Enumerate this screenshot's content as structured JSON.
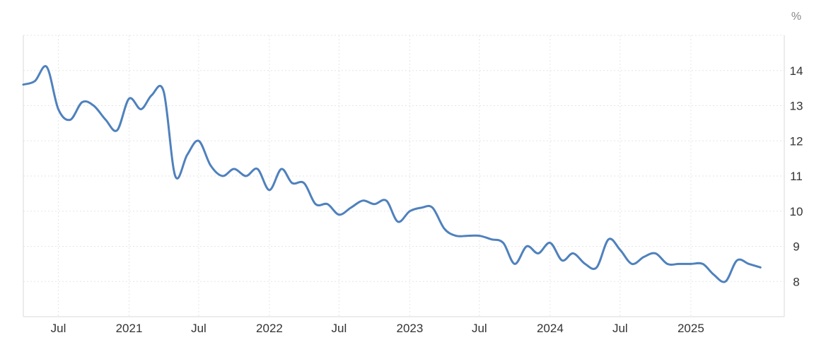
{
  "chart_data": {
    "type": "line",
    "unit": "%",
    "yticks": [
      8,
      9,
      10,
      11,
      12,
      13,
      14
    ],
    "ylim": [
      7,
      15
    ],
    "xlim": [
      "2020-04-01",
      "2025-09-01"
    ],
    "xticks": [
      {
        "date": "2020-07-01",
        "label": "Jul"
      },
      {
        "date": "2021-01-01",
        "label": "2021"
      },
      {
        "date": "2021-07-01",
        "label": "Jul"
      },
      {
        "date": "2022-01-01",
        "label": "2022"
      },
      {
        "date": "2022-07-01",
        "label": "Jul"
      },
      {
        "date": "2023-01-01",
        "label": "2023"
      },
      {
        "date": "2023-07-01",
        "label": "Jul"
      },
      {
        "date": "2024-01-01",
        "label": "2024"
      },
      {
        "date": "2024-07-01",
        "label": "Jul"
      },
      {
        "date": "2025-01-01",
        "label": "2025"
      }
    ],
    "grid": true,
    "line_color": "#4f81bd",
    "series": [
      {
        "points": [
          [
            "2020-04-01",
            13.6
          ],
          [
            "2020-05-01",
            13.7
          ],
          [
            "2020-06-01",
            14.1
          ],
          [
            "2020-07-01",
            12.9
          ],
          [
            "2020-08-01",
            12.6
          ],
          [
            "2020-09-01",
            13.1
          ],
          [
            "2020-10-01",
            13.0
          ],
          [
            "2020-11-01",
            12.6
          ],
          [
            "2020-12-01",
            12.3
          ],
          [
            "2021-01-01",
            13.2
          ],
          [
            "2021-02-01",
            12.9
          ],
          [
            "2021-03-01",
            13.3
          ],
          [
            "2021-04-01",
            13.4
          ],
          [
            "2021-05-01",
            11.0
          ],
          [
            "2021-06-01",
            11.6
          ],
          [
            "2021-07-01",
            12.0
          ],
          [
            "2021-08-01",
            11.3
          ],
          [
            "2021-09-01",
            11.0
          ],
          [
            "2021-10-01",
            11.2
          ],
          [
            "2021-11-01",
            11.0
          ],
          [
            "2021-12-01",
            11.2
          ],
          [
            "2022-01-01",
            10.6
          ],
          [
            "2022-02-01",
            11.2
          ],
          [
            "2022-03-01",
            10.8
          ],
          [
            "2022-04-01",
            10.8
          ],
          [
            "2022-05-01",
            10.2
          ],
          [
            "2022-06-01",
            10.2
          ],
          [
            "2022-07-01",
            9.9
          ],
          [
            "2022-08-01",
            10.1
          ],
          [
            "2022-09-01",
            10.3
          ],
          [
            "2022-10-01",
            10.2
          ],
          [
            "2022-11-01",
            10.3
          ],
          [
            "2022-12-01",
            9.7
          ],
          [
            "2023-01-01",
            10.0
          ],
          [
            "2023-02-01",
            10.1
          ],
          [
            "2023-03-01",
            10.1
          ],
          [
            "2023-04-01",
            9.5
          ],
          [
            "2023-05-01",
            9.3
          ],
          [
            "2023-06-01",
            9.3
          ],
          [
            "2023-07-01",
            9.3
          ],
          [
            "2023-08-01",
            9.2
          ],
          [
            "2023-09-01",
            9.1
          ],
          [
            "2023-10-01",
            8.5
          ],
          [
            "2023-11-01",
            9.0
          ],
          [
            "2023-12-01",
            8.8
          ],
          [
            "2024-01-01",
            9.1
          ],
          [
            "2024-02-01",
            8.6
          ],
          [
            "2024-03-01",
            8.8
          ],
          [
            "2024-04-01",
            8.5
          ],
          [
            "2024-05-01",
            8.4
          ],
          [
            "2024-06-01",
            9.2
          ],
          [
            "2024-07-01",
            8.9
          ],
          [
            "2024-08-01",
            8.5
          ],
          [
            "2024-09-01",
            8.7
          ],
          [
            "2024-10-01",
            8.8
          ],
          [
            "2024-11-01",
            8.5
          ],
          [
            "2024-12-01",
            8.5
          ],
          [
            "2025-01-01",
            8.5
          ],
          [
            "2025-02-01",
            8.5
          ],
          [
            "2025-03-01",
            8.2
          ],
          [
            "2025-04-01",
            8.0
          ],
          [
            "2025-05-01",
            8.6
          ],
          [
            "2025-06-01",
            8.5
          ],
          [
            "2025-07-01",
            8.4
          ]
        ]
      }
    ]
  }
}
